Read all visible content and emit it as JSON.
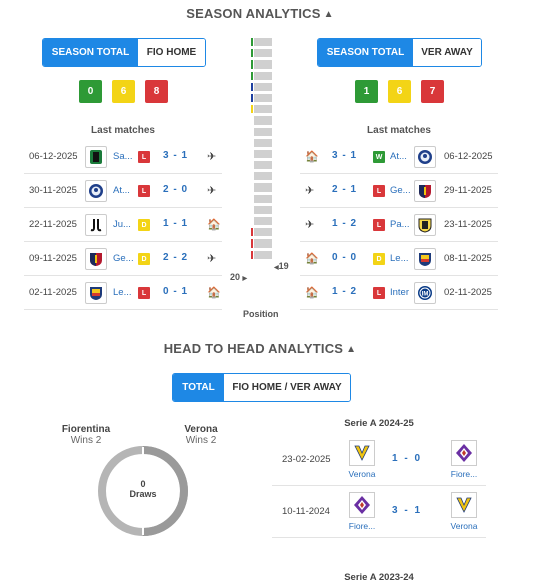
{
  "season": {
    "title": "SEASON ANALYTICS",
    "left": {
      "tab_total": "SEASON TOTAL",
      "tab_venue": "FIO HOME",
      "record": {
        "w": "0",
        "d": "6",
        "l": "8"
      },
      "last_matches_title": "Last matches",
      "matches": [
        {
          "date": "06-12-2025",
          "team": "Sa...",
          "result": "L",
          "score": "3 - 1",
          "venue": "away",
          "logo": "sassuolo-logo"
        },
        {
          "date": "30-11-2025",
          "team": "At...",
          "result": "L",
          "score": "2 - 0",
          "venue": "away",
          "logo": "atalanta-logo"
        },
        {
          "date": "22-11-2025",
          "team": "Ju...",
          "result": "D",
          "score": "1 - 1",
          "venue": "home",
          "logo": "juventus-logo"
        },
        {
          "date": "09-11-2025",
          "team": "Ge...",
          "result": "D",
          "score": "2 - 2",
          "venue": "away",
          "logo": "genoa-logo"
        },
        {
          "date": "02-11-2025",
          "team": "Le...",
          "result": "L",
          "score": "0 - 1",
          "venue": "home",
          "logo": "lecce-logo"
        }
      ],
      "position": "20"
    },
    "right": {
      "tab_total": "SEASON TOTAL",
      "tab_venue": "VER AWAY",
      "record": {
        "w": "1",
        "d": "6",
        "l": "7"
      },
      "last_matches_title": "Last matches",
      "matches": [
        {
          "date": "06-12-2025",
          "team": "At...",
          "result": "W",
          "score": "3 - 1",
          "venue": "home",
          "logo": "atalanta-logo"
        },
        {
          "date": "29-11-2025",
          "team": "Ge...",
          "result": "L",
          "score": "2 - 1",
          "venue": "away",
          "logo": "genoa-logo"
        },
        {
          "date": "23-11-2025",
          "team": "Pa...",
          "result": "L",
          "score": "1 - 2",
          "venue": "away",
          "logo": "parma-logo"
        },
        {
          "date": "08-11-2025",
          "team": "Le...",
          "result": "D",
          "score": "0 - 0",
          "venue": "home",
          "logo": "lecce-logo"
        },
        {
          "date": "02-11-2025",
          "team": "Inter",
          "result": "L",
          "score": "1 - 2",
          "venue": "home",
          "logo": "inter-logo"
        }
      ],
      "position": "19"
    },
    "position_label": "Position",
    "colors": {
      "green": "#2e9a36",
      "yellow": "#f3d416",
      "red": "#d9373a",
      "blue": "#1e88e5"
    }
  },
  "h2h": {
    "title": "HEAD TO HEAD ANALYTICS",
    "tab_total": "TOTAL",
    "tab_venue": "FIO HOME / VER AWAY",
    "team_left": {
      "name": "Fiorentina",
      "wins": "Wins 2"
    },
    "team_right": {
      "name": "Verona",
      "wins": "Wins 2"
    },
    "draws_count": "0",
    "draws_label": "Draws",
    "seasons": [
      {
        "name": "Serie A 2024-25",
        "matches": [
          {
            "date": "23-02-2025",
            "home": "Verona",
            "away": "Fiore...",
            "score": "1 - 0",
            "home_logo": "verona-logo",
            "away_logo": "fiorentina-logo"
          },
          {
            "date": "10-11-2024",
            "home": "Fiore...",
            "away": "Verona",
            "score": "3 - 1",
            "home_logo": "fiorentina-logo",
            "away_logo": "verona-logo"
          }
        ]
      },
      {
        "name": "Serie A 2023-24",
        "matches": []
      }
    ]
  }
}
